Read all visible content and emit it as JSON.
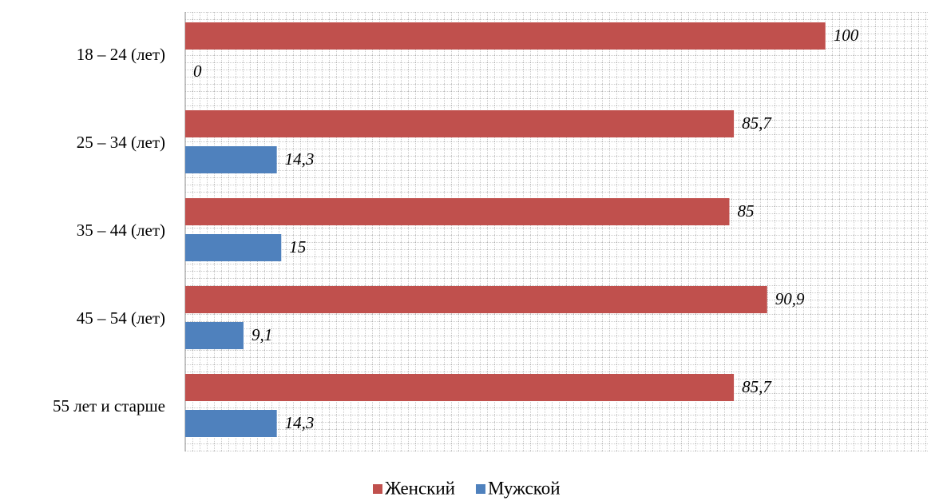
{
  "chart_data": {
    "type": "barh",
    "categories": [
      "18 – 24 (лет)",
      "25 – 34 (лет)",
      "35 – 44 (лет)",
      "45 – 54 (лет)",
      "55 лет и старше"
    ],
    "series": [
      {
        "name": "Женский",
        "color": "#c0504d",
        "values": [
          100,
          85.7,
          85,
          90.9,
          85.7
        ],
        "value_labels": [
          "100",
          "85,7",
          "85",
          "90,9",
          "85,7"
        ]
      },
      {
        "name": "Мужской",
        "color": "#4f81bd",
        "values": [
          0,
          14.3,
          15,
          9.1,
          14.3
        ],
        "value_labels": [
          "0",
          "14,3",
          "15",
          "9,1",
          "14,3"
        ]
      }
    ],
    "xlim": [
      0,
      116
    ],
    "grid": true,
    "legend": "bottom"
  }
}
